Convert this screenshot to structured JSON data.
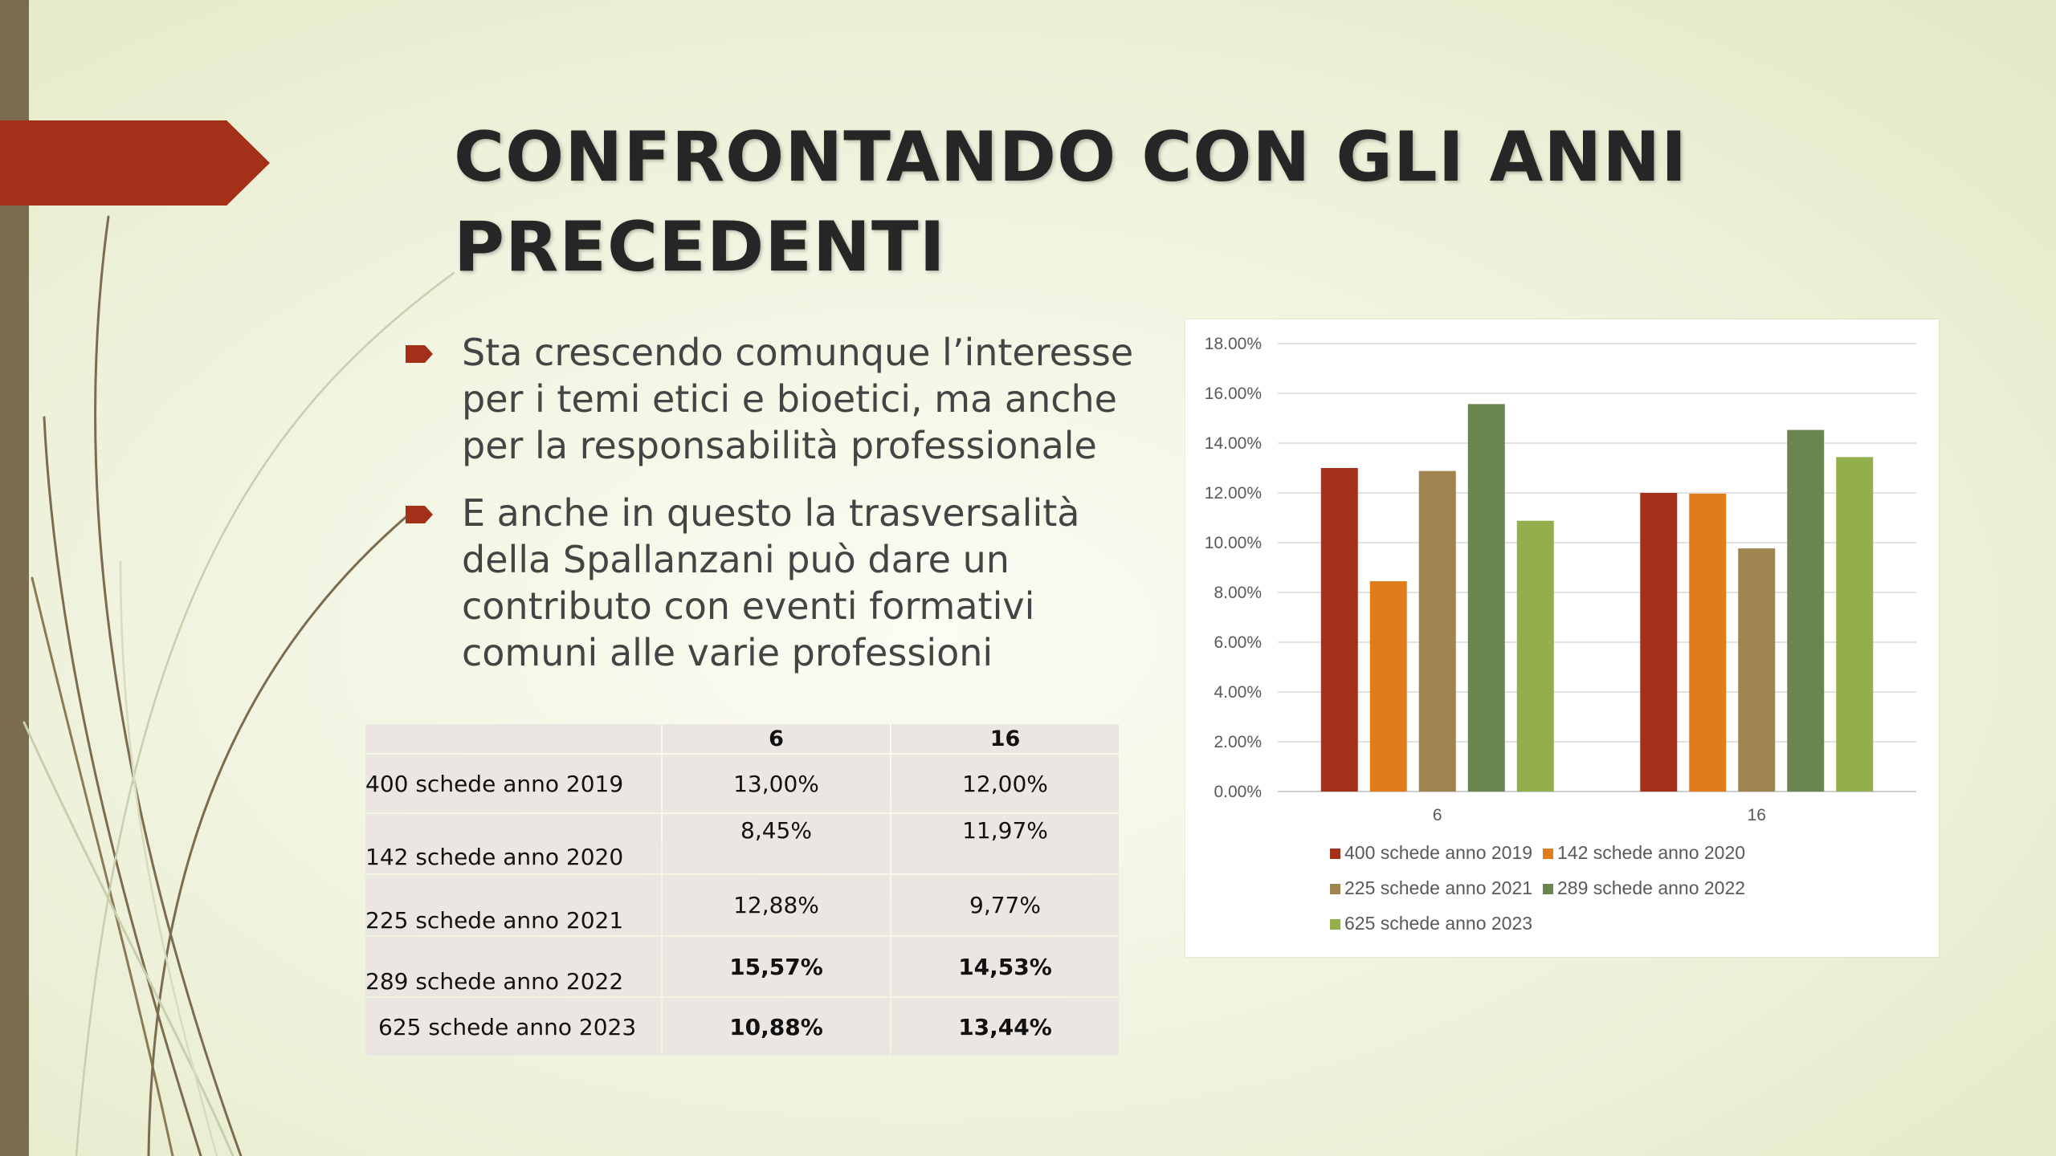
{
  "slide": {
    "title": "CONFRONTANDO CON GLI ANNI PRECEDENTI",
    "bullets": [
      "Sta crescendo comunque l’interesse per i temi etici e bioetici, ma anche per la responsabilità professionale",
      "E anche in questo la trasversalità della Spallanzani può dare un contributo con eventi formativi comuni alle varie professioni"
    ]
  },
  "table": {
    "headers": [
      "",
      "6",
      "16"
    ],
    "rows": [
      {
        "label": "400 schede anno 2019",
        "c6": "13,00%",
        "c16": "12,00%"
      },
      {
        "label": "142  schede anno 2020",
        "c6": "8,45%",
        "c16": "11,97%"
      },
      {
        "label": "225 schede anno 2021",
        "c6": "12,88%",
        "c16": "9,77%"
      },
      {
        "label": "289 schede anno 2022",
        "c6": "15,57%",
        "c16": "14,53%"
      },
      {
        "label": "625 schede anno 2023",
        "c6": "10,88%",
        "c16": "13,44%"
      }
    ],
    "highlight_color": "#ffff00"
  },
  "chart_data": {
    "type": "bar",
    "categories": [
      "6",
      "16"
    ],
    "series": [
      {
        "name": "400 schede anno 2019",
        "values": [
          13.0,
          12.0
        ],
        "color": "#a5301a"
      },
      {
        "name": "142  schede anno 2020",
        "values": [
          8.45,
          11.97
        ],
        "color": "#e07d1a"
      },
      {
        "name": "225 schede anno 2021",
        "values": [
          12.88,
          9.77
        ],
        "color": "#a08450"
      },
      {
        "name": "289 schede anno 2022",
        "values": [
          15.57,
          14.53
        ],
        "color": "#6b8550"
      },
      {
        "name": "625 schede anno 2023",
        "values": [
          10.88,
          13.44
        ],
        "color": "#92ae4d"
      }
    ],
    "y_ticks": [
      "0.00%",
      "2.00%",
      "4.00%",
      "6.00%",
      "8.00%",
      "10.00%",
      "12.00%",
      "14.00%",
      "16.00%",
      "18.00%"
    ],
    "ylim": [
      0,
      18
    ],
    "grid": true,
    "legend_position": "bottom"
  },
  "colors": {
    "accent": "#a5301a",
    "side_bar": "#7b6c4f",
    "highlight": "#ffff00"
  },
  "icons": {
    "bullet": "arrow-bullet-icon"
  }
}
